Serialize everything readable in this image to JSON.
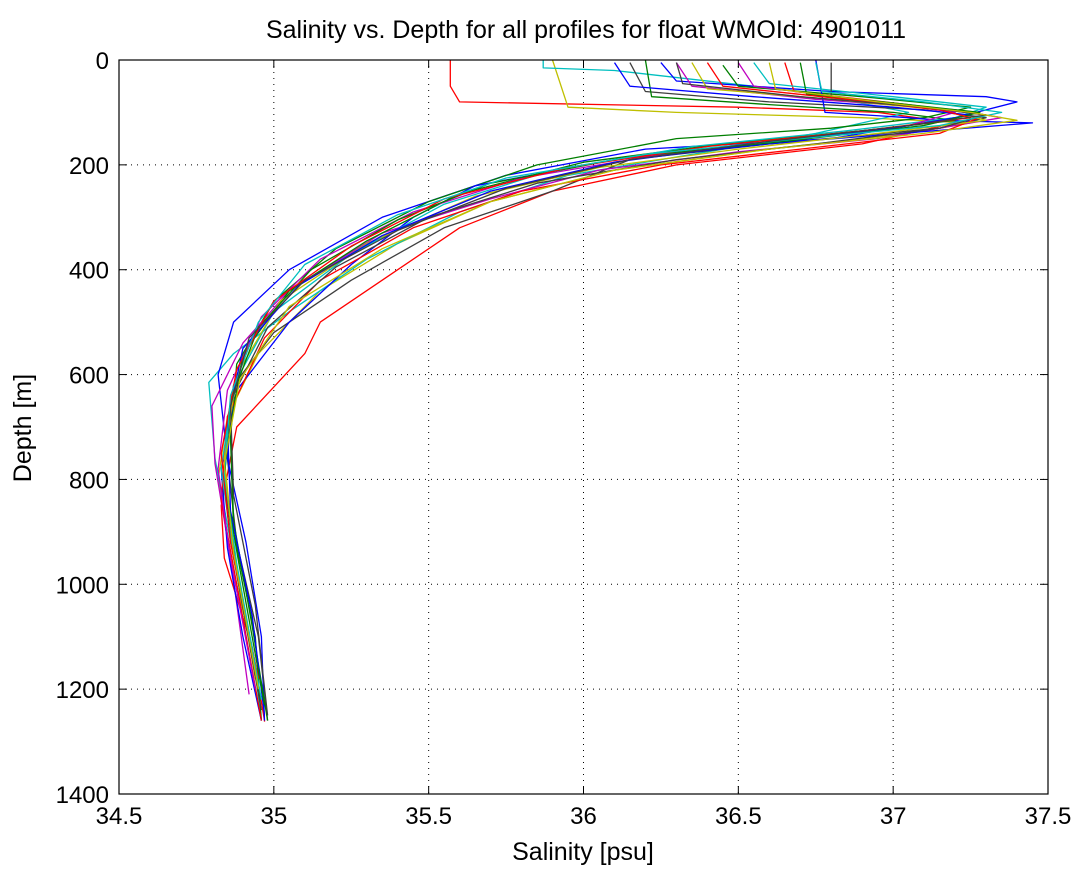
{
  "chart_data": {
    "type": "line",
    "title": "Salinity vs. Depth for all profiles for float WMOId: 4901011",
    "xlabel": "Salinity [psu]",
    "ylabel": "Depth [m]",
    "xlim": [
      34.5,
      37.5
    ],
    "ylim": [
      0,
      1400
    ],
    "y_reversed": true,
    "grid": true,
    "grid_style": "dotted",
    "x_ticks": [
      34.5,
      35,
      35.5,
      36,
      36.5,
      37,
      37.5
    ],
    "x_tick_labels": [
      "34.5",
      "35",
      "35.5",
      "36",
      "36.5",
      "37",
      "37.5"
    ],
    "y_ticks": [
      0,
      200,
      400,
      600,
      800,
      1000,
      1200,
      1400
    ],
    "y_tick_labels": [
      "0",
      "200",
      "400",
      "600",
      "800",
      "1000",
      "1200",
      "1400"
    ],
    "line_colors": [
      "#0000ff",
      "#007f00",
      "#ff0000",
      "#00bfbf",
      "#bf00bf",
      "#bfbf00",
      "#3f3f3f"
    ],
    "series": [
      {
        "color": "#ff0000",
        "x": [
          35.57,
          35.57,
          35.6,
          36.5,
          36.95,
          37.2,
          36.9,
          36.3,
          35.9,
          35.6,
          35.35,
          35.15,
          35.1,
          34.88,
          34.83,
          34.84,
          34.93,
          34.97,
          34.97
        ],
        "y": [
          0,
          50,
          80,
          90,
          100,
          120,
          160,
          200,
          250,
          320,
          420,
          500,
          560,
          700,
          850,
          950,
          1120,
          1260,
          1262
        ]
      },
      {
        "color": "#bfbf00",
        "x": [
          35.9,
          35.95,
          36.3,
          36.9,
          37.25,
          37.05,
          36.6,
          36.1,
          35.7,
          35.4,
          35.15,
          34.95,
          34.85,
          34.82,
          34.86,
          34.94,
          34.95
        ],
        "y": [
          0,
          90,
          100,
          110,
          120,
          140,
          170,
          210,
          270,
          350,
          440,
          560,
          680,
          800,
          950,
          1150,
          1210
        ]
      },
      {
        "color": "#00bfbf",
        "x": [
          35.87,
          35.87,
          36.1,
          36.7,
          37.05,
          36.75,
          36.4,
          35.95,
          35.6,
          35.3,
          35.05,
          34.87,
          34.79,
          34.81,
          34.87,
          34.93,
          34.96
        ],
        "y": [
          0,
          15,
          20,
          60,
          100,
          140,
          175,
          220,
          290,
          380,
          480,
          560,
          615,
          760,
          950,
          1120,
          1260
        ]
      },
      {
        "color": "#3f3f3f",
        "x": [
          36.15,
          36.2,
          36.6,
          37.1,
          37.3,
          37.15,
          36.6,
          36.15,
          35.9,
          35.55,
          35.25,
          35.0,
          34.87,
          34.85,
          34.88,
          34.95,
          34.98
        ],
        "y": [
          5,
          60,
          80,
          95,
          110,
          130,
          160,
          190,
          250,
          320,
          420,
          520,
          620,
          760,
          920,
          1100,
          1260
        ]
      },
      {
        "color": "#0000ff",
        "x": [
          36.25,
          36.3,
          36.8,
          37.3,
          37.4,
          37.2,
          36.8,
          36.2,
          35.75,
          35.35,
          35.05,
          34.87,
          34.82,
          34.85,
          34.91,
          34.96,
          34.97
        ],
        "y": [
          5,
          40,
          60,
          70,
          80,
          110,
          150,
          170,
          220,
          300,
          400,
          500,
          600,
          760,
          920,
          1100,
          1260
        ]
      },
      {
        "color": "#007f00",
        "x": [
          36.45,
          36.5,
          36.9,
          37.25,
          37.1,
          36.8,
          36.3,
          35.85,
          35.5,
          35.2,
          35.0,
          34.88,
          34.86,
          34.87,
          34.94,
          34.96
        ],
        "y": [
          10,
          50,
          70,
          90,
          110,
          130,
          150,
          200,
          270,
          360,
          460,
          580,
          720,
          900,
          1100,
          1260
        ]
      },
      {
        "color": "#bf00bf",
        "x": [
          36.3,
          36.35,
          36.75,
          37.2,
          37.35,
          36.95,
          36.5,
          36.05,
          35.7,
          35.35,
          35.05,
          34.9,
          34.8,
          34.81,
          34.86,
          34.92
        ],
        "y": [
          5,
          50,
          75,
          95,
          110,
          150,
          175,
          210,
          265,
          330,
          440,
          540,
          660,
          770,
          950,
          1210
        ]
      },
      {
        "color": "#0000ff",
        "x": [
          36.75,
          36.78,
          37.05,
          37.15,
          37.45,
          36.6,
          36.1,
          35.65,
          35.45,
          35.25,
          35.05,
          34.88,
          34.83,
          34.85,
          34.9,
          34.96
        ],
        "y": [
          0,
          100,
          110,
          115,
          120,
          160,
          190,
          240,
          300,
          390,
          500,
          630,
          780,
          930,
          1100,
          1260
        ]
      },
      {
        "color": "#ff0000",
        "x": [
          36.65,
          36.68,
          37.05,
          37.3,
          37.15,
          36.7,
          36.25,
          35.8,
          35.45,
          35.15,
          34.97,
          34.85,
          34.83,
          34.88,
          34.96
        ],
        "y": [
          5,
          60,
          85,
          105,
          140,
          170,
          200,
          250,
          320,
          420,
          530,
          680,
          840,
          1000,
          1260
        ]
      },
      {
        "color": "#007f00",
        "x": [
          36.2,
          36.22,
          36.6,
          37.0,
          37.2,
          36.9,
          36.45,
          36.0,
          35.6,
          35.3,
          35.05,
          34.9,
          34.86,
          34.87,
          34.93,
          34.98
        ],
        "y": [
          0,
          70,
          85,
          100,
          115,
          135,
          160,
          195,
          255,
          345,
          440,
          560,
          700,
          880,
          1080,
          1260
        ]
      },
      {
        "color": "#00bfbf",
        "x": [
          36.55,
          36.6,
          37.0,
          37.3,
          37.2,
          36.85,
          36.35,
          35.9,
          35.55,
          35.25,
          35.0,
          34.87,
          34.83,
          34.87,
          34.95
        ],
        "y": [
          5,
          45,
          70,
          90,
          110,
          135,
          165,
          210,
          275,
          370,
          480,
          620,
          780,
          950,
          1200
        ]
      },
      {
        "color": "#bfbf00",
        "x": [
          36.35,
          36.4,
          36.8,
          37.15,
          37.3,
          36.95,
          36.5,
          36.05,
          35.65,
          35.3,
          35.02,
          34.88,
          34.84,
          34.87,
          34.94
        ],
        "y": [
          5,
          55,
          75,
          95,
          115,
          140,
          170,
          205,
          260,
          350,
          460,
          600,
          760,
          930,
          1180
        ]
      },
      {
        "color": "#3f3f3f",
        "x": [
          36.8,
          36.8,
          37.1,
          37.3,
          37.15,
          36.75,
          36.3,
          35.85,
          35.5,
          35.2,
          34.98,
          34.86,
          34.84,
          34.88,
          34.96
        ],
        "y": [
          5,
          70,
          90,
          105,
          130,
          160,
          190,
          235,
          300,
          395,
          510,
          650,
          800,
          980,
          1240
        ]
      },
      {
        "color": "#bf00bf",
        "x": [
          36.5,
          36.55,
          36.95,
          37.2,
          37.05,
          36.7,
          36.25,
          35.8,
          35.45,
          35.15,
          34.96,
          34.85,
          34.82,
          34.86,
          34.94
        ],
        "y": [
          5,
          50,
          80,
          100,
          125,
          150,
          180,
          225,
          290,
          380,
          490,
          630,
          780,
          950,
          1200
        ]
      },
      {
        "color": "#0000ff",
        "x": [
          36.1,
          36.15,
          36.55,
          37.0,
          37.25,
          37.0,
          36.55,
          36.1,
          35.7,
          35.35,
          35.08,
          34.9,
          34.85,
          34.86,
          34.93,
          34.97
        ],
        "y": [
          5,
          50,
          70,
          90,
          105,
          130,
          160,
          195,
          250,
          335,
          430,
          550,
          690,
          860,
          1060,
          1250
        ]
      },
      {
        "color": "#007f00",
        "x": [
          36.7,
          36.72,
          37.05,
          37.28,
          37.1,
          36.65,
          36.15,
          35.7,
          35.4,
          35.12,
          34.95,
          34.86,
          34.84,
          34.89,
          34.97
        ],
        "y": [
          5,
          65,
          85,
          100,
          125,
          155,
          185,
          235,
          305,
          400,
          510,
          650,
          800,
          970,
          1230
        ]
      },
      {
        "color": "#ff0000",
        "x": [
          36.4,
          36.45,
          36.85,
          37.15,
          37.25,
          36.9,
          36.4,
          35.95,
          35.55,
          35.25,
          35.0,
          34.88,
          34.83,
          34.86,
          34.95
        ],
        "y": [
          5,
          50,
          75,
          95,
          110,
          135,
          165,
          205,
          265,
          355,
          460,
          590,
          750,
          920,
          1180
        ]
      },
      {
        "color": "#00bfbf",
        "x": [
          36.75,
          36.77,
          37.1,
          37.35,
          37.15,
          36.7,
          36.2,
          35.75,
          35.4,
          35.1,
          34.95,
          34.86,
          34.84,
          34.88,
          34.96
        ],
        "y": [
          5,
          60,
          80,
          100,
          125,
          150,
          180,
          225,
          295,
          390,
          500,
          640,
          790,
          960,
          1220
        ]
      },
      {
        "color": "#3f3f3f",
        "x": [
          36.3,
          36.32,
          36.7,
          37.1,
          37.3,
          37.05,
          36.6,
          36.15,
          35.75,
          35.4,
          35.1,
          34.92,
          34.86,
          34.87,
          34.94,
          34.98
        ],
        "y": [
          5,
          45,
          70,
          90,
          105,
          125,
          155,
          190,
          245,
          325,
          420,
          530,
          660,
          830,
          1040,
          1250
        ]
      },
      {
        "color": "#bfbf00",
        "x": [
          36.6,
          36.62,
          36.95,
          37.25,
          37.4,
          37.1,
          36.6,
          36.1,
          35.7,
          35.35,
          35.05,
          34.89,
          34.84,
          34.87,
          34.95
        ],
        "y": [
          5,
          55,
          80,
          100,
          115,
          140,
          170,
          210,
          270,
          360,
          470,
          610,
          770,
          940,
          1200
        ]
      }
    ]
  }
}
